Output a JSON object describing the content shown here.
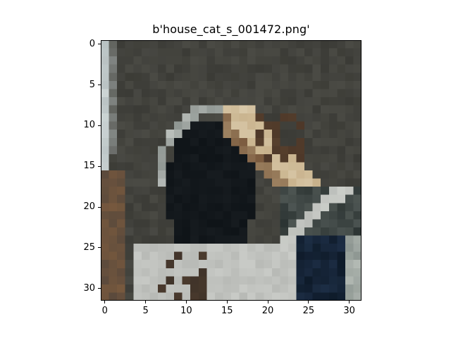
{
  "title": "b'house_cat_s_001472.png'",
  "axes": {
    "x_ticks": [
      "0",
      "5",
      "10",
      "15",
      "20",
      "25",
      "30"
    ],
    "y_ticks": [
      "0",
      "5",
      "10",
      "15",
      "20",
      "25",
      "30"
    ],
    "xlim": [
      -0.5,
      31.5
    ],
    "ylim": [
      31.5,
      -0.5
    ],
    "tick_values": [
      0,
      5,
      10,
      15,
      20,
      25,
      30
    ]
  },
  "image": {
    "subject": "house cat (pixelated 32x32 photo)",
    "grid_size": 32,
    "palette": {
      "bg_dark": "#3b3b36",
      "bg_mid": "#4a4a44",
      "window_light": "#b9c2c3",
      "cat_black": "#0f1418",
      "fur_tan": "#c8b28c",
      "fur_brown": "#7a5a3e",
      "outline_gray": "#8f9692",
      "floor_light": "#b8bab6",
      "floor_blue": "#1d2e45"
    }
  }
}
